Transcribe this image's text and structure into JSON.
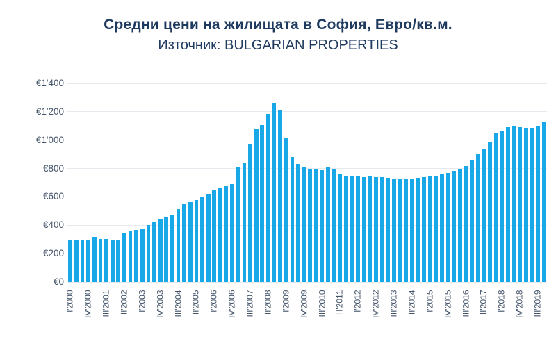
{
  "header": {
    "title": "Средни цени на жилищата в София, Евро/кв.м.",
    "subtitle": "Източник: BULGARIAN PROPERTIES"
  },
  "colors": {
    "bar": "#18A7E7",
    "grid": "#E6EAEE",
    "title_text": "#1F3A5F",
    "axis_text": "#44546A",
    "background": "#FFFFFF"
  },
  "chart_data": {
    "type": "bar",
    "title": "Средни цени на жилищата в София, Евро/кв.м.",
    "source": "Източник: BULGARIAN PROPERTIES",
    "unit": "EUR per sq.m",
    "ylim": [
      0,
      1400
    ],
    "y_tick_step": 200,
    "y_tick_labels": [
      "€0",
      "€200",
      "€400",
      "€600",
      "€800",
      "€1'000",
      "€1'200",
      "€1'400"
    ],
    "grid": true,
    "legend": false,
    "x_label_every": 3,
    "categories": [
      "I'2000",
      "II'2000",
      "III'2000",
      "IV'2000",
      "I'2001",
      "II'2001",
      "III'2001",
      "IV'2001",
      "I'2002",
      "II'2002",
      "III'2002",
      "IV'2002",
      "I'2003",
      "II'2003",
      "III'2003",
      "IV'2003",
      "I'2004",
      "II'2004",
      "III'2004",
      "IV'2004",
      "I'2005",
      "II'2005",
      "III'2005",
      "IV'2005",
      "I'2006",
      "II'2006",
      "III'2006",
      "IV'2006",
      "I'2007",
      "II'2007",
      "III'2007",
      "IV'2007",
      "I'2008",
      "II'2008",
      "III'2008",
      "IV'2008",
      "I'2009",
      "II'2009",
      "III'2009",
      "IV'2009",
      "I'2010",
      "II'2010",
      "III'2010",
      "IV'2010",
      "I'2011",
      "II'2011",
      "III'2011",
      "IV'2011",
      "I'2012",
      "II'2012",
      "III'2012",
      "IV'2012",
      "I'2013",
      "II'2013",
      "III'2013",
      "IV'2013",
      "I'2014",
      "II'2014",
      "III'2014",
      "IV'2014",
      "I'2015",
      "II'2015",
      "III'2015",
      "IV'2015",
      "I'2016",
      "II'2016",
      "III'2016",
      "IV'2016",
      "I'2017",
      "II'2017",
      "III'2017",
      "IV'2017",
      "I'2018",
      "II'2018",
      "III'2018",
      "IV'2018",
      "I'2019",
      "II'2019",
      "III'2019",
      "IV'2019"
    ],
    "values": [
      300,
      297,
      294,
      296,
      320,
      303,
      305,
      297,
      294,
      345,
      356,
      366,
      378,
      400,
      428,
      444,
      456,
      476,
      514,
      550,
      562,
      580,
      603,
      618,
      647,
      663,
      676,
      690,
      810,
      837,
      969,
      1081,
      1106,
      1184,
      1265,
      1216,
      1013,
      883,
      834,
      810,
      797,
      793,
      790,
      813,
      797,
      761,
      748,
      742,
      745,
      741,
      748,
      740,
      737,
      732,
      728,
      723,
      726,
      730,
      735,
      740,
      745,
      750,
      758,
      770,
      782,
      797,
      820,
      860,
      900,
      940,
      990,
      1054,
      1060,
      1092,
      1096,
      1090,
      1085,
      1088,
      1096,
      1125
    ]
  }
}
